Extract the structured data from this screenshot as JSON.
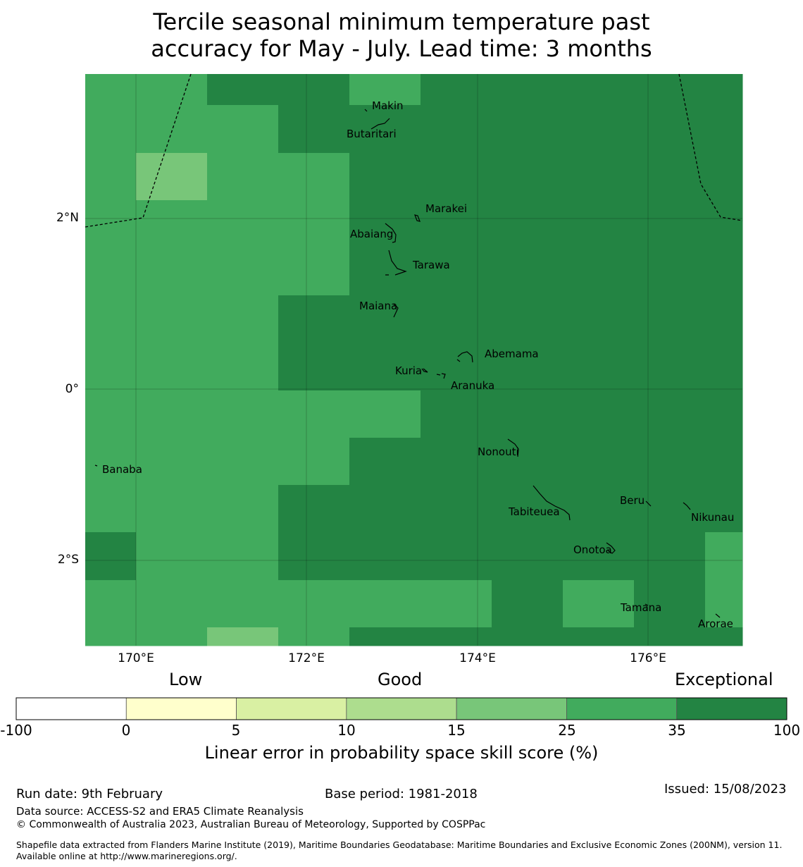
{
  "title": {
    "line1": "Tercile seasonal minimum temperature past",
    "line2": "accuracy for May - July. Lead time: 3 months"
  },
  "map": {
    "lat_labels": [
      "2°N",
      "0°",
      "2°S"
    ],
    "lon_labels": [
      "170°E",
      "172°E",
      "174°E",
      "176°E"
    ],
    "places": [
      {
        "name": "Makin"
      },
      {
        "name": "Butaritari"
      },
      {
        "name": "Marakei"
      },
      {
        "name": "Abaiang"
      },
      {
        "name": "Tarawa"
      },
      {
        "name": "Maiana"
      },
      {
        "name": "Abemama"
      },
      {
        "name": "Kuria"
      },
      {
        "name": "Aranuka"
      },
      {
        "name": "Nonouti"
      },
      {
        "name": "Banaba"
      },
      {
        "name": "Beru"
      },
      {
        "name": "Tabiteuea"
      },
      {
        "name": "Nikunau"
      },
      {
        "name": "Onotoa"
      },
      {
        "name": "Tamana"
      },
      {
        "name": "Arorae"
      }
    ],
    "grid_levels_legend": "cells coloured by skill class: 3 = 15-25, 4 = 25-35, 5 = 35-100"
  },
  "legend": {
    "categories": [
      "Low",
      "Good",
      "Exceptional"
    ],
    "ticks": [
      "-100",
      "0",
      "5",
      "10",
      "15",
      "25",
      "35",
      "100"
    ],
    "colors": [
      "#ffffff",
      "#ffffcc",
      "#d9f0a3",
      "#addd8e",
      "#78c679",
      "#41ab5d",
      "#238443"
    ],
    "title": "Linear error in probability space skill score (%)"
  },
  "footer": {
    "run_date": "Run date: 9th February",
    "base_period": "Base period: 1981-2018",
    "issued": "Issued: 15/08/2023",
    "data_source": "Data source: ACCESS-S2 and ERA5 Climate Reanalysis",
    "copyright": "© Commonwealth of Australia 2023, Australian Bureau of Meteorology, Supported by COSPPac",
    "shapefile": "Shapefile data extracted from Flanders Marine Institute (2019), Maritime Boundaries Geodatabase: Maritime Boundaries and Exclusive Economic Zones (200NM), version 11. Available online at http://www.marineregions.org/."
  }
}
